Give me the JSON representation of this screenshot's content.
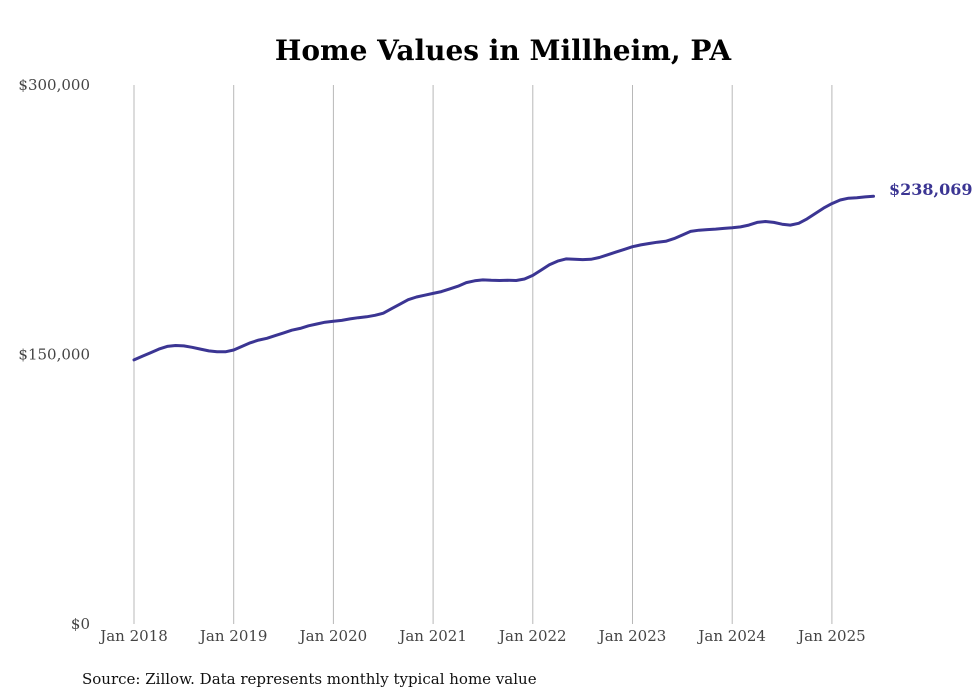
{
  "chart_data": {
    "type": "line",
    "title": "Home Values in Millheim, PA",
    "xlabel": "",
    "ylabel": "",
    "ylim": [
      0,
      300000
    ],
    "y_ticks": [
      {
        "value": 0,
        "label": "$0"
      },
      {
        "value": 150000,
        "label": "$150,000"
      },
      {
        "value": 300000,
        "label": "$300,000"
      }
    ],
    "x_ticks": [
      {
        "value": 2018,
        "label": "Jan 2018"
      },
      {
        "value": 2019,
        "label": "Jan 2019"
      },
      {
        "value": 2020,
        "label": "Jan 2020"
      },
      {
        "value": 2021,
        "label": "Jan 2021"
      },
      {
        "value": 2022,
        "label": "Jan 2022"
      },
      {
        "value": 2023,
        "label": "Jan 2023"
      },
      {
        "value": 2024,
        "label": "Jan 2024"
      },
      {
        "value": 2025,
        "label": "Jan 2025"
      }
    ],
    "xlim": [
      2018,
      2025.45
    ],
    "grid": "vertical",
    "line_color": "#3b3593",
    "end_label": "$238,069",
    "source": "Source: Zillow. Data represents monthly typical home value",
    "series": [
      {
        "x": [
          2018.0,
          2018.083,
          2018.167,
          2018.25,
          2018.333,
          2018.417,
          2018.5,
          2018.583,
          2018.667,
          2018.75,
          2018.833,
          2018.917,
          2019.0,
          2019.083,
          2019.167,
          2019.25,
          2019.333,
          2019.417,
          2019.5,
          2019.583,
          2019.667,
          2019.75,
          2019.833,
          2019.917,
          2020.0,
          2020.083,
          2020.167,
          2020.25,
          2020.333,
          2020.417,
          2020.5,
          2020.583,
          2020.667,
          2020.75,
          2020.833,
          2020.917,
          2021.0,
          2021.083,
          2021.167,
          2021.25,
          2021.333,
          2021.417,
          2021.5,
          2021.583,
          2021.667,
          2021.75,
          2021.833,
          2021.917,
          2022.0,
          2022.083,
          2022.167,
          2022.25,
          2022.333,
          2022.417,
          2022.5,
          2022.583,
          2022.667,
          2022.75,
          2022.833,
          2022.917,
          2023.0,
          2023.083,
          2023.167,
          2023.25,
          2023.333,
          2023.417,
          2023.5,
          2023.583,
          2023.667,
          2023.75,
          2023.833,
          2023.917,
          2024.0,
          2024.083,
          2024.167,
          2024.25,
          2024.333,
          2024.417,
          2024.5,
          2024.583,
          2024.667,
          2024.75,
          2024.833,
          2024.917,
          2025.0,
          2025.083,
          2025.167,
          2025.25,
          2025.333,
          2025.417
        ],
        "values": [
          147000,
          149000,
          151000,
          153000,
          154500,
          155000,
          154800,
          154000,
          153000,
          152000,
          151500,
          151500,
          152500,
          154500,
          156500,
          158000,
          159000,
          160500,
          162000,
          163500,
          164500,
          166000,
          167000,
          168000,
          168500,
          169000,
          169800,
          170500,
          171000,
          171800,
          173000,
          175500,
          178000,
          180500,
          182000,
          183000,
          184000,
          185000,
          186500,
          188000,
          190000,
          191000,
          191500,
          191300,
          191200,
          191300,
          191200,
          192000,
          194000,
          197000,
          200000,
          202000,
          203200,
          203000,
          202800,
          203000,
          204000,
          205500,
          207000,
          208500,
          210000,
          211000,
          211800,
          212500,
          213000,
          214500,
          216500,
          218500,
          219200,
          219500,
          219800,
          220200,
          220500,
          221000,
          222000,
          223500,
          224000,
          223500,
          222500,
          222000,
          223000,
          225500,
          228500,
          231500,
          234000,
          236000,
          237000,
          237300,
          237700,
          238069
        ]
      }
    ]
  }
}
